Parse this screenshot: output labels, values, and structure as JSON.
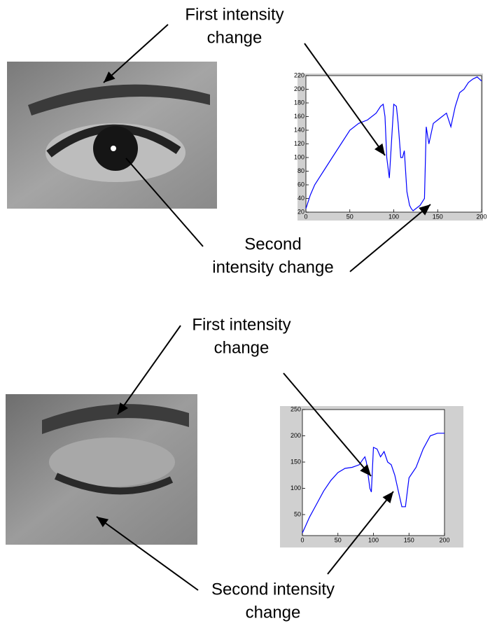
{
  "chart_data": [
    {
      "type": "line",
      "color": "#0000ff",
      "x": [
        0,
        5,
        10,
        20,
        30,
        40,
        50,
        60,
        70,
        80,
        85,
        88,
        90,
        92,
        95,
        100,
        103,
        105,
        108,
        110,
        112,
        115,
        118,
        120,
        122,
        125,
        130,
        135,
        137,
        140,
        145,
        150,
        155,
        160,
        165,
        170,
        175,
        180,
        185,
        190,
        195,
        200
      ],
      "values": [
        25,
        45,
        60,
        80,
        100,
        120,
        140,
        150,
        155,
        165,
        175,
        178,
        160,
        100,
        70,
        178,
        175,
        150,
        100,
        100,
        110,
        50,
        30,
        25,
        22,
        25,
        30,
        40,
        145,
        120,
        150,
        155,
        160,
        165,
        145,
        175,
        195,
        200,
        210,
        215,
        218,
        212
      ],
      "xlim": [
        0,
        200
      ],
      "xticks": [
        0,
        50,
        100,
        150,
        200
      ],
      "ylim": [
        20,
        220
      ],
      "yticks": [
        20,
        40,
        60,
        80,
        100,
        120,
        140,
        160,
        180,
        200,
        220
      ]
    },
    {
      "type": "line",
      "color": "#0000ff",
      "x": [
        0,
        5,
        10,
        20,
        30,
        40,
        50,
        60,
        70,
        80,
        85,
        88,
        90,
        95,
        97,
        100,
        105,
        110,
        115,
        120,
        125,
        130,
        135,
        140,
        145,
        150,
        160,
        170,
        180,
        190,
        200
      ],
      "values": [
        15,
        30,
        45,
        70,
        95,
        115,
        130,
        138,
        140,
        145,
        155,
        160,
        150,
        100,
        93,
        178,
        175,
        160,
        170,
        150,
        145,
        125,
        95,
        65,
        65,
        120,
        140,
        175,
        200,
        205,
        205
      ],
      "xlim": [
        0,
        200
      ],
      "xticks": [
        0,
        50,
        100,
        150,
        200
      ],
      "ylim": [
        10,
        250
      ],
      "yticks": [
        50,
        100,
        150,
        200,
        250
      ]
    }
  ],
  "annotations": [
    [
      "First intensity",
      "change"
    ],
    [
      "Second",
      "intensity change"
    ],
    [
      "First intensity",
      "change"
    ],
    [
      "Second intensity",
      "change"
    ]
  ]
}
